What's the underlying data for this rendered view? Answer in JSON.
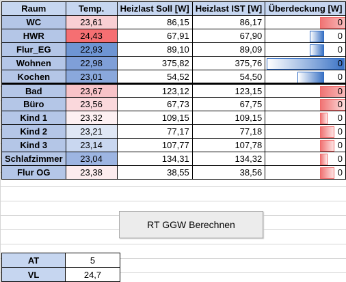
{
  "headers": {
    "room": "Raum",
    "temp": "Temp.",
    "soll": "Heizlast Soll [W]",
    "ist": "Heizlast IST [W]",
    "over": "Überdeckung [W]"
  },
  "rows": [
    {
      "room": "WC",
      "temp": "23,61",
      "soll": "86,15",
      "ist": "86,17",
      "over": "0",
      "bar": 0.03,
      "tempColor": "#f9cfd3"
    },
    {
      "room": "HWR",
      "temp": "24,43",
      "soll": "67,91",
      "ist": "67,90",
      "over": "0",
      "bar": -0.01,
      "tempColor": "#f56f72"
    },
    {
      "room": "Flur_EG",
      "temp": "22,93",
      "soll": "89,10",
      "ist": "89,09",
      "over": "0",
      "bar": -0.01,
      "tempColor": "#6e95d3"
    },
    {
      "room": "Wohnen",
      "temp": "22,98",
      "soll": "375,82",
      "ist": "375,76",
      "over": "0",
      "bar": -0.06,
      "tempColor": "#7f9fd8"
    },
    {
      "room": "Kochen",
      "temp": "23,01",
      "soll": "54,52",
      "ist": "54,50",
      "over": "0",
      "bar": -0.02,
      "tempColor": "#8aa8dc"
    },
    {
      "room": "Bad",
      "temp": "23,67",
      "soll": "123,12",
      "ist": "123,15",
      "over": "0",
      "bar": 0.03,
      "tempColor": "#f8c3c8"
    },
    {
      "room": "Büro",
      "temp": "23,56",
      "soll": "67,73",
      "ist": "67,75",
      "over": "0",
      "bar": 0.02,
      "tempColor": "#fad8dc"
    },
    {
      "room": "Kind 1",
      "temp": "23,32",
      "soll": "109,15",
      "ist": "109,15",
      "over": "0",
      "bar": 0.005,
      "tempColor": "#fdf0f2"
    },
    {
      "room": "Kind 2",
      "temp": "23,21",
      "soll": "77,17",
      "ist": "77,18",
      "over": "0",
      "bar": 0.01,
      "tempColor": "#dfe7f5"
    },
    {
      "room": "Kind 3",
      "temp": "23,14",
      "soll": "107,77",
      "ist": "107,78",
      "over": "0",
      "bar": 0.01,
      "tempColor": "#c9d7f0"
    },
    {
      "room": "Schlafzimmer",
      "temp": "23,04",
      "soll": "134,31",
      "ist": "134,32",
      "over": "0",
      "bar": 0.005,
      "tempColor": "#9db5e2"
    },
    {
      "room": "Flur OG",
      "temp": "23,38",
      "soll": "38,55",
      "ist": "38,56",
      "over": "0",
      "bar": 0.01,
      "tempColor": "#fcecee"
    }
  ],
  "button": {
    "label": "RT GGW Berechnen"
  },
  "params": [
    {
      "label": "AT",
      "value": "5"
    },
    {
      "label": "VL",
      "value": "24,7"
    }
  ]
}
